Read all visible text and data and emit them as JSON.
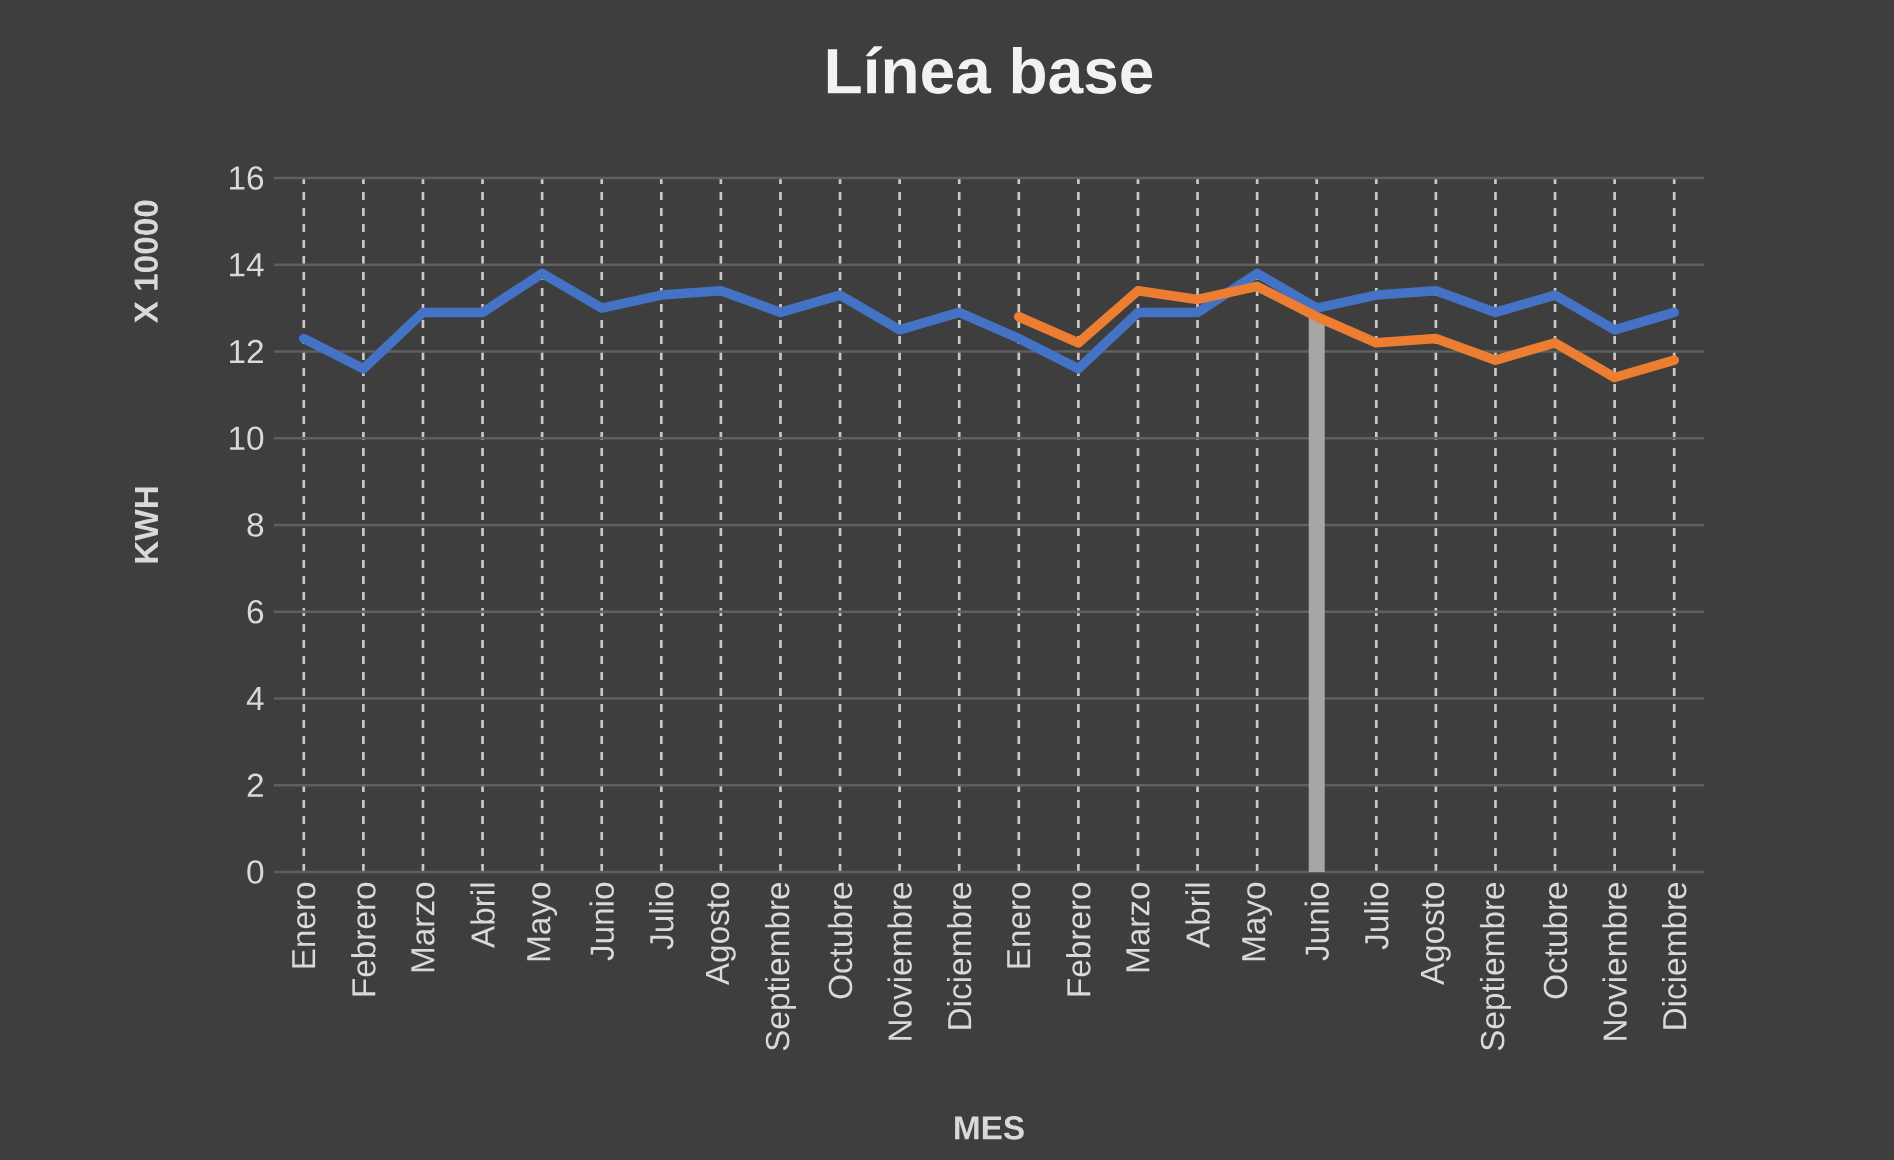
{
  "chart_data": {
    "type": "line",
    "title": "Línea base",
    "xlabel": "MES",
    "ylabel": "KWH",
    "annotations": [
      "X 10000"
    ],
    "categories": [
      "Enero",
      "Febrero",
      "Marzo",
      "Abril",
      "Mayo",
      "Junio",
      "Julio",
      "Agosto",
      "Septiembre",
      "Octubre",
      "Noviembre",
      "Diciembre",
      "Enero",
      "Febrero",
      "Marzo",
      "Abril",
      "Mayo",
      "Junio",
      "Julio",
      "Agosto",
      "Septiembre",
      "Octubre",
      "Noviembre",
      "Diciembre"
    ],
    "series": [
      {
        "type": "bar",
        "color": "#a6a6a6",
        "values": [
          null,
          null,
          null,
          null,
          null,
          null,
          null,
          null,
          null,
          null,
          null,
          null,
          null,
          null,
          null,
          null,
          null,
          12.8,
          null,
          null,
          null,
          null,
          null,
          null
        ]
      },
      {
        "color": "#4472c4",
        "values": [
          12.3,
          11.6,
          12.9,
          12.9,
          13.8,
          13.0,
          13.3,
          13.4,
          12.9,
          13.3,
          12.5,
          12.9,
          12.3,
          11.6,
          12.9,
          12.9,
          13.8,
          13.0,
          13.3,
          13.4,
          12.9,
          13.3,
          12.5,
          12.9
        ]
      },
      {
        "color": "#ed7d31",
        "values": [
          null,
          null,
          null,
          null,
          null,
          null,
          null,
          null,
          null,
          null,
          null,
          null,
          12.8,
          12.2,
          13.4,
          13.2,
          13.5,
          12.8,
          12.2,
          12.3,
          11.8,
          12.2,
          11.4,
          11.8
        ]
      }
    ],
    "ylim": [
      0,
      16
    ],
    "yticks": [
      0,
      2,
      4,
      6,
      8,
      10,
      12,
      14,
      16
    ],
    "grid": true
  }
}
